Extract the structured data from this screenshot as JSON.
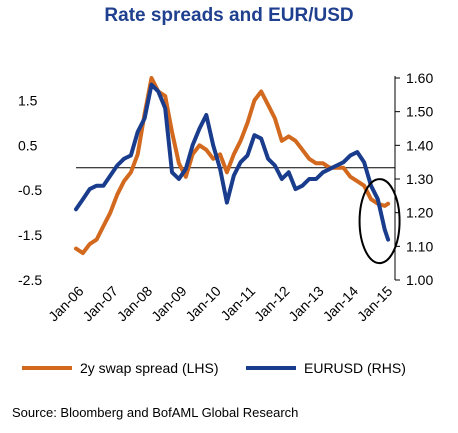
{
  "title": "Rate spreads and EUR/USD",
  "source": "Source: Bloomberg and BofAML Global Research",
  "colors": {
    "spread": "#d2691e",
    "eurusd": "#1a3c8c",
    "title": "#1f3f8f"
  },
  "chart_data": {
    "type": "line",
    "title": "Rate spreads and EUR/USD",
    "x_tick_labels": [
      "Jan-06",
      "Jan-07",
      "Jan-08",
      "Jan-09",
      "Jan-10",
      "Jan-11",
      "Jan-12",
      "Jan-13",
      "Jan-14",
      "Jan-15"
    ],
    "x_range": [
      2006.0,
      2015.3
    ],
    "left_axis": {
      "ylim": [
        -2.5,
        2.0
      ],
      "ticks": [
        1.5,
        0.5,
        -0.5,
        -1.5,
        -2.5
      ],
      "tick_labels": [
        "1.5",
        "0.5",
        "-0.5",
        "-1.5",
        "-2.5"
      ],
      "reference_line": 0
    },
    "right_axis": {
      "ylim": [
        1.0,
        1.6
      ],
      "ticks": [
        1.6,
        1.5,
        1.4,
        1.3,
        1.2,
        1.1,
        1.0
      ],
      "tick_labels": [
        "1.60",
        "1.50",
        "1.40",
        "1.30",
        "1.20",
        "1.10",
        "1.00"
      ]
    },
    "series": [
      {
        "name": "2y swap spread (LHS)",
        "axis": "left",
        "x": [
          2006.0,
          2006.2,
          2006.4,
          2006.6,
          2006.8,
          2007.0,
          2007.2,
          2007.4,
          2007.6,
          2007.8,
          2008.0,
          2008.2,
          2008.4,
          2008.6,
          2008.8,
          2009.0,
          2009.2,
          2009.4,
          2009.6,
          2009.8,
          2010.0,
          2010.2,
          2010.4,
          2010.6,
          2010.8,
          2011.0,
          2011.2,
          2011.4,
          2011.6,
          2011.8,
          2012.0,
          2012.2,
          2012.4,
          2012.6,
          2012.8,
          2013.0,
          2013.2,
          2013.4,
          2013.6,
          2013.8,
          2014.0,
          2014.2,
          2014.4,
          2014.6,
          2014.8,
          2015.0,
          2015.1
        ],
        "y": [
          -1.8,
          -1.9,
          -1.7,
          -1.6,
          -1.3,
          -1.0,
          -0.6,
          -0.3,
          -0.1,
          0.3,
          1.2,
          2.0,
          1.7,
          1.6,
          0.8,
          0.1,
          -0.2,
          0.3,
          0.5,
          0.4,
          0.2,
          0.3,
          -0.1,
          0.3,
          0.6,
          1.0,
          1.5,
          1.7,
          1.4,
          1.1,
          0.6,
          0.7,
          0.6,
          0.4,
          0.2,
          0.1,
          0.1,
          0.0,
          0.0,
          0.0,
          -0.2,
          -0.3,
          -0.4,
          -0.7,
          -0.8,
          -0.85,
          -0.8
        ]
      },
      {
        "name": "EURUSD (RHS)",
        "axis": "right",
        "x": [
          2006.0,
          2006.2,
          2006.4,
          2006.6,
          2006.8,
          2007.0,
          2007.2,
          2007.4,
          2007.6,
          2007.8,
          2008.0,
          2008.2,
          2008.4,
          2008.6,
          2008.8,
          2009.0,
          2009.2,
          2009.4,
          2009.6,
          2009.8,
          2010.0,
          2010.2,
          2010.4,
          2010.6,
          2010.8,
          2011.0,
          2011.2,
          2011.4,
          2011.6,
          2011.8,
          2012.0,
          2012.2,
          2012.4,
          2012.6,
          2012.8,
          2013.0,
          2013.2,
          2013.4,
          2013.6,
          2013.8,
          2014.0,
          2014.2,
          2014.4,
          2014.6,
          2014.8,
          2015.0,
          2015.1
        ],
        "y": [
          1.21,
          1.24,
          1.27,
          1.28,
          1.28,
          1.31,
          1.34,
          1.36,
          1.37,
          1.44,
          1.48,
          1.58,
          1.56,
          1.51,
          1.32,
          1.3,
          1.33,
          1.4,
          1.45,
          1.49,
          1.4,
          1.33,
          1.23,
          1.31,
          1.35,
          1.37,
          1.43,
          1.42,
          1.36,
          1.34,
          1.3,
          1.32,
          1.27,
          1.28,
          1.3,
          1.3,
          1.32,
          1.33,
          1.34,
          1.35,
          1.37,
          1.38,
          1.35,
          1.28,
          1.24,
          1.15,
          1.12
        ]
      }
    ],
    "annotation": "ellipse highlighting the last segment",
    "legend_position": "bottom"
  }
}
